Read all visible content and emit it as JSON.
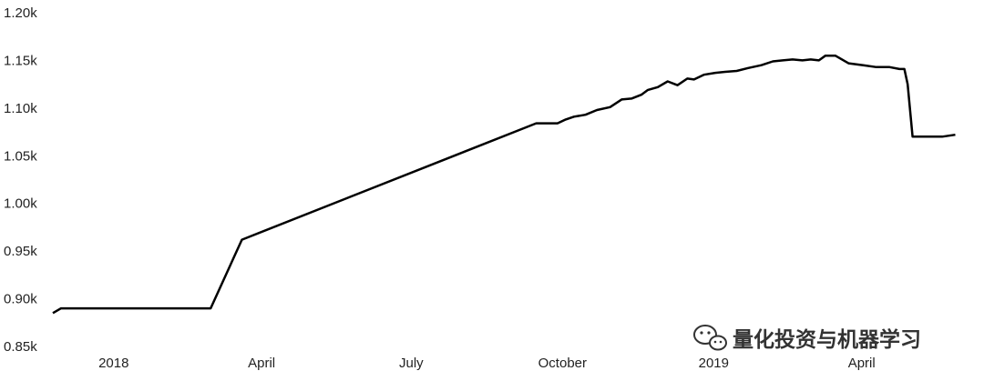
{
  "chart_data": {
    "type": "line",
    "title": "",
    "xlabel": "",
    "ylabel": "",
    "x_ticks": [
      "2018",
      "April",
      "July",
      "October",
      "2019",
      "April"
    ],
    "y_ticks": [
      "0.85k",
      "0.90k",
      "0.95k",
      "1.00k",
      "1.05k",
      "1.10k",
      "1.15k",
      "1.20k"
    ],
    "ylim": [
      850,
      1200
    ],
    "xlim": [
      "2017-11-25",
      "2019-06-10"
    ],
    "x_tick_dates": [
      "2018-01-01",
      "2018-04-01",
      "2018-07-01",
      "2018-10-01",
      "2019-01-01",
      "2019-04-01"
    ],
    "grid": false,
    "series": [
      {
        "color": "#000000",
        "x": [
          "2017-11-25",
          "2017-11-30",
          "2018-03-01",
          "2018-03-20",
          "2018-09-15",
          "2018-09-28",
          "2018-10-03",
          "2018-10-08",
          "2018-10-15",
          "2018-10-22",
          "2018-10-30",
          "2018-11-06",
          "2018-11-12",
          "2018-11-18",
          "2018-11-22",
          "2018-11-28",
          "2018-12-04",
          "2018-12-10",
          "2018-12-16",
          "2018-12-20",
          "2018-12-26",
          "2019-01-02",
          "2019-01-08",
          "2019-01-15",
          "2019-01-22",
          "2019-01-30",
          "2019-02-06",
          "2019-02-12",
          "2019-02-18",
          "2019-02-24",
          "2019-03-01",
          "2019-03-06",
          "2019-03-10",
          "2019-03-16",
          "2019-03-24",
          "2019-04-02",
          "2019-04-10",
          "2019-04-18",
          "2019-04-24",
          "2019-04-27",
          "2019-04-29",
          "2019-05-02",
          "2019-05-20",
          "2019-05-28"
        ],
        "values": [
          885,
          890,
          890,
          962,
          1084,
          1084,
          1088,
          1091,
          1093,
          1098,
          1101,
          1109,
          1110,
          1114,
          1119,
          1122,
          1128,
          1124,
          1131,
          1130,
          1135,
          1137,
          1138,
          1139,
          1142,
          1145,
          1149,
          1150,
          1151,
          1150,
          1151,
          1150,
          1155,
          1155,
          1147,
          1145,
          1143,
          1143,
          1141,
          1141,
          1125,
          1070,
          1070,
          1072
        ]
      }
    ]
  },
  "watermark": {
    "text": "量化投资与机器学习",
    "icon": "wechat-icon"
  }
}
